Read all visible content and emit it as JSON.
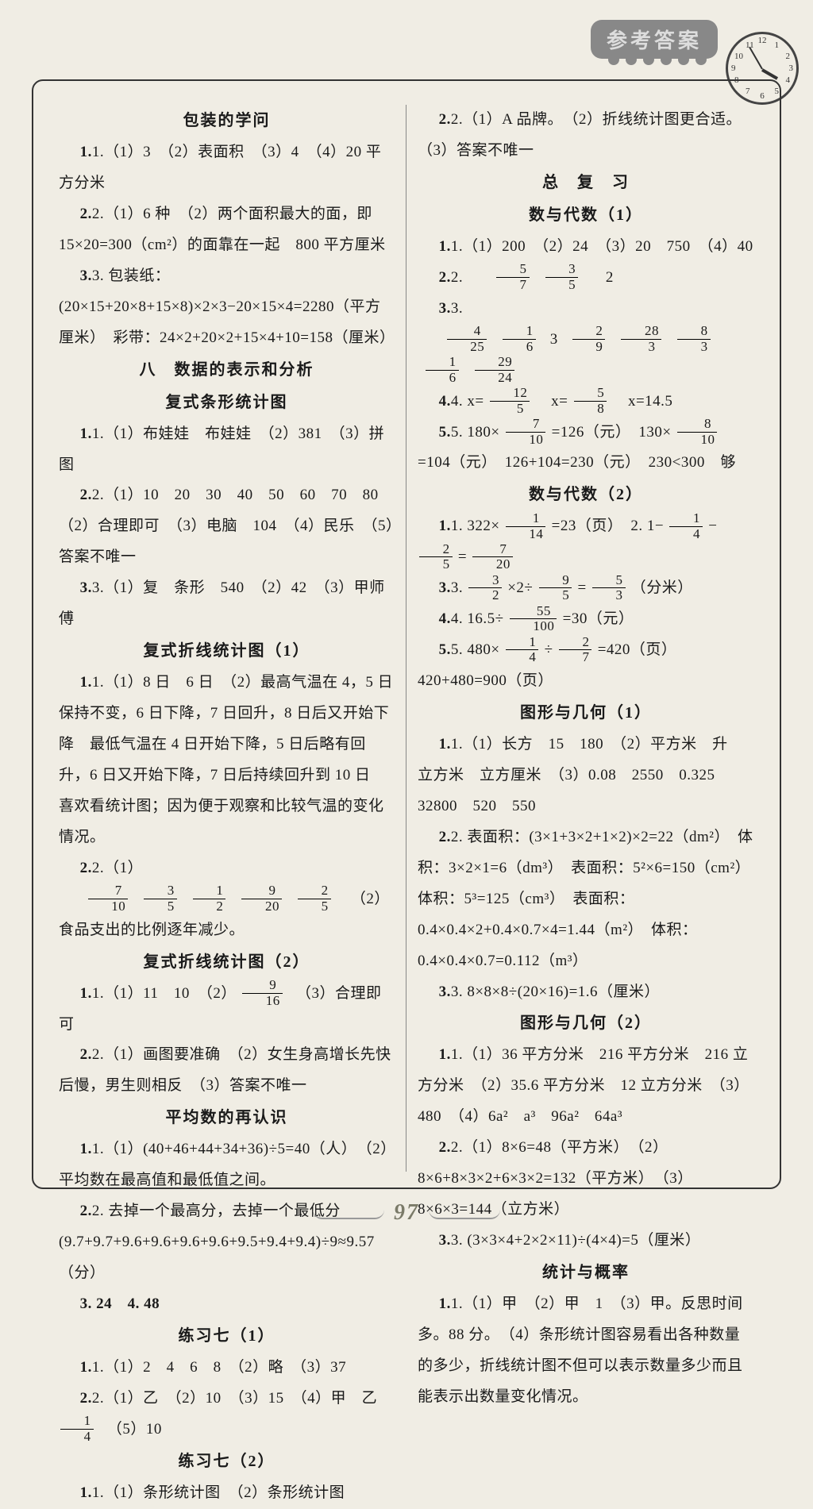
{
  "page_number": "97",
  "header_label": "参考答案",
  "colors": {
    "background": "#f0ede4",
    "text": "#1a1a1a",
    "border": "#333333",
    "stamp_bg": "#888888",
    "accent": "#7a7a68"
  },
  "typography": {
    "body_family": "SimSun",
    "body_size_pt": 14,
    "title_size_pt": 15,
    "line_height": 2.05
  },
  "left_column": {
    "sec1_title": "包装的学问",
    "sec1_q1": "1.（1）3　（2）表面积　（3）4　（4）20 平方分米",
    "sec1_q2": "2.（1）6 种　（2）两个面积最大的面，即15×20=300（cm²）的面靠在一起　800 平方厘米",
    "sec1_q3_a": "3. 包装纸：(20×15+20×8+15×8)×2×3−20×15×4=2280（平方厘米）　彩带：24×2+20×2+15×4+10=158（厘米）",
    "sec2_big": "八　数据的表示和分析",
    "sec2_sub1": "复式条形统计图",
    "sec2_q1": "1.（1）布娃娃　布娃娃　（2）381　（3）拼图",
    "sec2_q2": "2.（1）10　20　30　40　50　60　70　80　（2）合理即可　（3）电脑　104　（4）民乐　（5）答案不唯一",
    "sec2_q3": "3.（1）复　条形　540　（2）42　（3）甲师傅",
    "sec3_title": "复式折线统计图（1）",
    "sec3_q1": "1.（1）8 日　6 日　（2）最高气温在 4，5 日保持不变，6 日下降，7 日回升，8 日后又开始下降　最低气温在 4 日开始下降，5 日后略有回升，6 日又开始下降，7 日后持续回升到 10 日　喜欢看统计图；因为便于观察和比较气温的变化情况。",
    "sec3_q2_prefix": "2.（1）",
    "sec3_q2_suffix": "　（2）食品支出的比例逐年减少。",
    "sec3_q2_fracs": [
      [
        "7",
        "10"
      ],
      [
        "3",
        "5"
      ],
      [
        "1",
        "2"
      ],
      [
        "9",
        "20"
      ],
      [
        "2",
        "5"
      ]
    ],
    "sec4_title": "复式折线统计图（2）",
    "sec4_q1_prefix": "1.（1）11　10　（2）",
    "sec4_q1_frac": [
      "9",
      "16"
    ],
    "sec4_q1_suffix": "　（3）合理即可",
    "sec4_q2": "2.（1）画图要准确　（2）女生身高增长先快后慢，男生则相反　（3）答案不唯一",
    "sec5_title": "平均数的再认识",
    "sec5_q1": "1.（1）(40+46+44+34+36)÷5=40（人）　（2）平均数在最高值和最低值之间。",
    "sec5_q2": "2. 去掉一个最高分，去掉一个最低分　(9.7+9.7+9.6+9.6+9.6+9.6+9.5+9.4+9.4)÷9≈9.57（分）",
    "sec5_q3": "3. 24　4. 48",
    "sec6_title": "练习七（1）",
    "sec6_q1": "1.（1）2　4　6　8　（2）略　（3）37",
    "sec6_q2_prefix": "2.（1）乙　（2）10　（3）15　（4）甲　乙　",
    "sec6_q2_frac": [
      "1",
      "4"
    ],
    "sec6_q2_suffix": "　（5）10",
    "sec7_title": "练习七（2）",
    "sec7_q1": "1.（1）条形统计图　（2）条形统计图"
  },
  "right_column": {
    "r_top": "2.（1）A 品牌。　（2）折线统计图更合适。　（3）答案不唯一",
    "r_big1": "总　复　习",
    "r_sub1": "数与代数（1）",
    "r1_q1": "1.（1）200　（2）24　（3）20　750　（4）40",
    "r1_q2_prefix": "2. ",
    "r1_q2_fracs": [
      [
        "5",
        "7"
      ],
      [
        "3",
        "5"
      ]
    ],
    "r1_q2_suffix": "　2",
    "r1_q3_prefix": "3. ",
    "r1_q3_items": [
      [
        "4",
        "25"
      ],
      [
        "1",
        "6"
      ],
      "3",
      [
        "2",
        "9"
      ],
      [
        "28",
        "3"
      ],
      [
        "8",
        "3"
      ],
      [
        "1",
        "6"
      ],
      [
        "29",
        "24"
      ]
    ],
    "r1_q4_prefix": "4. x=",
    "r1_q4_f1": [
      "12",
      "5"
    ],
    "r1_q4_mid": "　x=",
    "r1_q4_f2": [
      "5",
      "8"
    ],
    "r1_q4_suffix": "　x=14.5",
    "r1_q5_a": "5. 180×",
    "r1_q5_f1": [
      "7",
      "10"
    ],
    "r1_q5_b": "=126（元）　130×",
    "r1_q5_f2": [
      "8",
      "10"
    ],
    "r1_q5_c": "=104（元）　126+104=230（元）　230<300　够",
    "r_sub2": "数与代数（2）",
    "r2_q1_a": "1. 322×",
    "r2_q1_f1": [
      "1",
      "14"
    ],
    "r2_q1_b": "=23（页）　2. 1−",
    "r2_q1_f2": [
      "1",
      "4"
    ],
    "r2_q1_c": "−",
    "r2_q1_f3": [
      "2",
      "5"
    ],
    "r2_q1_d": "=",
    "r2_q1_f4": [
      "7",
      "20"
    ],
    "r2_q3_a": "3. ",
    "r2_q3_f1": [
      "3",
      "2"
    ],
    "r2_q3_b": "×2÷",
    "r2_q3_f2": [
      "9",
      "5"
    ],
    "r2_q3_c": "=",
    "r2_q3_f3": [
      "5",
      "3"
    ],
    "r2_q3_d": "（分米）",
    "r2_q4_a": "4. 16.5÷",
    "r2_q4_f": [
      "55",
      "100"
    ],
    "r2_q4_b": "=30（元）",
    "r2_q5_a": "5. 480×",
    "r2_q5_f1": [
      "1",
      "4"
    ],
    "r2_q5_b": "÷",
    "r2_q5_f2": [
      "2",
      "7"
    ],
    "r2_q5_c": "=420（页）　420+480=900（页）",
    "r_sub3": "图形与几何（1）",
    "r3_q1": "1.（1）长方　15　180　（2）平方米　升　立方米　立方厘米　（3）0.08　2550　0.325　32800　520　550",
    "r3_q2": "2. 表面积：(3×1+3×2+1×2)×2=22（dm²）　体积：3×2×1=6（dm³）　表面积：5²×6=150（cm²）　体积：5³=125（cm³）　表面积：0.4×0.4×2+0.4×0.7×4=1.44（m²）　体积：0.4×0.4×0.7=0.112（m³）",
    "r3_q3": "3. 8×8×8÷(20×16)=1.6（厘米）",
    "r_sub4": "图形与几何（2）",
    "r4_q1": "1.（1）36 平方分米　216 平方分米　216 立方分米　（2）35.6 平方分米　12 立方分米　（3）480　（4）6a²　a³　96a²　64a³",
    "r4_q2": "2.（1）8×6=48（平方米）　（2）8×6+8×3×2+6×3×2=132（平方米）　（3）8×6×3=144（立方米）",
    "r4_q3": "3. (3×3×4+2×2×11)÷(4×4)=5（厘米）",
    "r_sub5": "统计与概率",
    "r5_q1": "1.（1）甲　（2）甲　1　（3）甲。反思时间多。88 分。　（4）条形统计图容易看出各种数量的多少，折线统计图不但可以表示数量多少而且能表示出数量变化情况。"
  }
}
